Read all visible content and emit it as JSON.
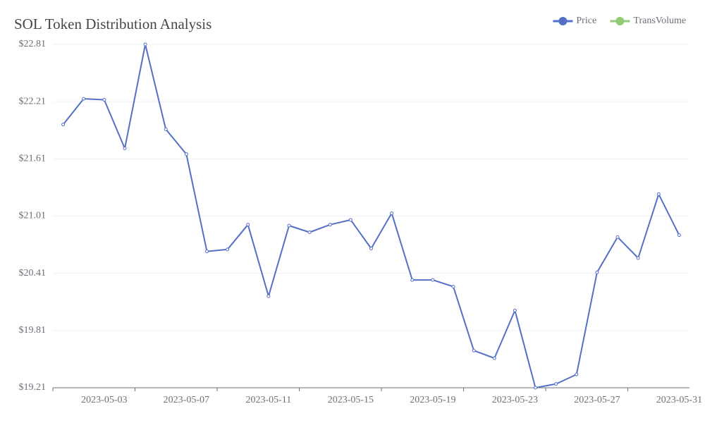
{
  "chart_data": {
    "type": "line",
    "title": "SOL Token Distribution Analysis",
    "categories": [
      null,
      null,
      "2023-05-03",
      null,
      null,
      null,
      "2023-05-07",
      null,
      null,
      null,
      "2023-05-11",
      null,
      null,
      null,
      "2023-05-15",
      null,
      null,
      null,
      "2023-05-19",
      null,
      null,
      null,
      "2023-05-23",
      null,
      null,
      null,
      "2023-05-27",
      null,
      null,
      null,
      "2023-05-31"
    ],
    "series": [
      {
        "name": "Price",
        "color": "#5470c6",
        "values": [
          21.97,
          22.24,
          22.23,
          21.72,
          22.81,
          21.92,
          21.66,
          20.64,
          20.66,
          20.92,
          20.17,
          20.91,
          20.84,
          20.92,
          20.97,
          20.67,
          21.04,
          20.34,
          20.34,
          20.27,
          19.6,
          19.52,
          20.02,
          19.21,
          19.25,
          19.35,
          20.42,
          20.79,
          20.57,
          21.24,
          20.81
        ]
      },
      {
        "name": "TransVolume",
        "color": "#91cc75",
        "values": [
          null,
          null,
          null,
          null,
          null,
          null,
          null,
          null,
          null,
          null,
          null,
          null,
          null,
          null,
          null,
          null,
          null,
          null,
          null,
          null,
          null,
          null,
          null,
          null,
          null,
          null,
          null,
          null,
          null,
          null,
          null
        ]
      }
    ],
    "ylim": [
      19.21,
      22.81
    ],
    "yticks": [
      {
        "value": 19.21,
        "label": "$19.21"
      },
      {
        "value": 19.81,
        "label": "$19.81"
      },
      {
        "value": 20.41,
        "label": "$20.41"
      },
      {
        "value": 21.01,
        "label": "$21.01"
      },
      {
        "value": 21.61,
        "label": "$21.61"
      },
      {
        "value": 22.21,
        "label": "$22.21"
      },
      {
        "value": 22.81,
        "label": "$22.81"
      }
    ],
    "grid": true,
    "legend": "top-right"
  }
}
